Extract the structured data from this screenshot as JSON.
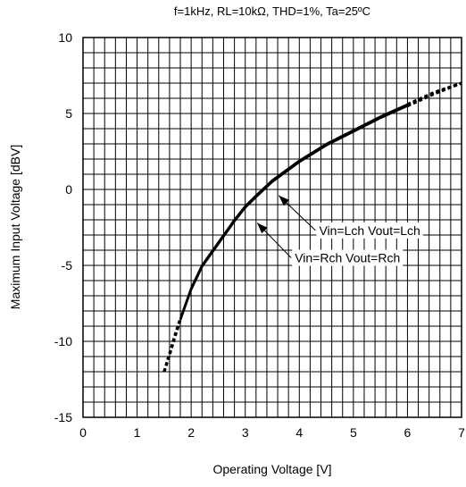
{
  "chart_data": {
    "type": "line",
    "title": "f=1kHz, RL=10kΩ, THD=1%, Ta=25ºC",
    "xlabel": "Operating Voltage [V]",
    "ylabel": "Maximum Input Voltage [dBV]",
    "xlim": [
      0,
      7
    ],
    "ylim": [
      -15,
      10
    ],
    "x_ticks": [
      "0",
      "1",
      "2",
      "3",
      "4",
      "5",
      "6",
      "7"
    ],
    "y_ticks": [
      "10",
      "5",
      "0",
      "-5",
      "-10",
      "-15"
    ],
    "grid": true,
    "minor_grid_x_step": 0.2,
    "minor_grid_y_step": 1,
    "solid_range": [
      1.8,
      6.0
    ],
    "series": [
      {
        "name": "Vin=Lch Vout=Lch",
        "x": [
          1.5,
          1.6,
          1.7,
          1.8,
          2.0,
          2.2,
          2.5,
          2.8,
          3.0,
          3.2,
          3.5,
          4.0,
          4.5,
          5.0,
          5.5,
          6.0,
          6.5,
          7.0
        ],
        "y": [
          -12.0,
          -10.8,
          -9.6,
          -8.5,
          -6.5,
          -5.0,
          -3.5,
          -2.0,
          -1.1,
          -0.4,
          0.6,
          1.9,
          3.0,
          3.9,
          4.8,
          5.6,
          6.4,
          7.0
        ]
      },
      {
        "name": "Vin=Rch Vout=Rch",
        "x": [
          1.5,
          1.6,
          1.7,
          1.8,
          2.0,
          2.2,
          2.5,
          2.8,
          3.0,
          3.2,
          3.5,
          4.0,
          4.5,
          5.0,
          5.5,
          6.0,
          6.5,
          7.0
        ],
        "y": [
          -12.0,
          -10.9,
          -9.7,
          -8.6,
          -6.6,
          -5.1,
          -3.6,
          -2.1,
          -1.2,
          -0.5,
          0.5,
          1.8,
          2.9,
          3.8,
          4.7,
          5.5,
          6.3,
          7.0
        ]
      }
    ],
    "annotations": [
      {
        "text": "Vin=Lch Vout=Lch",
        "x_end": 3.62,
        "y_end": -0.4,
        "x_start": 4.3,
        "y_start": -2.7
      },
      {
        "text": "Vin=Rch Vout=Rch",
        "x_end": 3.22,
        "y_end": -2.2,
        "x_start": 3.85,
        "y_start": -4.5
      }
    ]
  }
}
